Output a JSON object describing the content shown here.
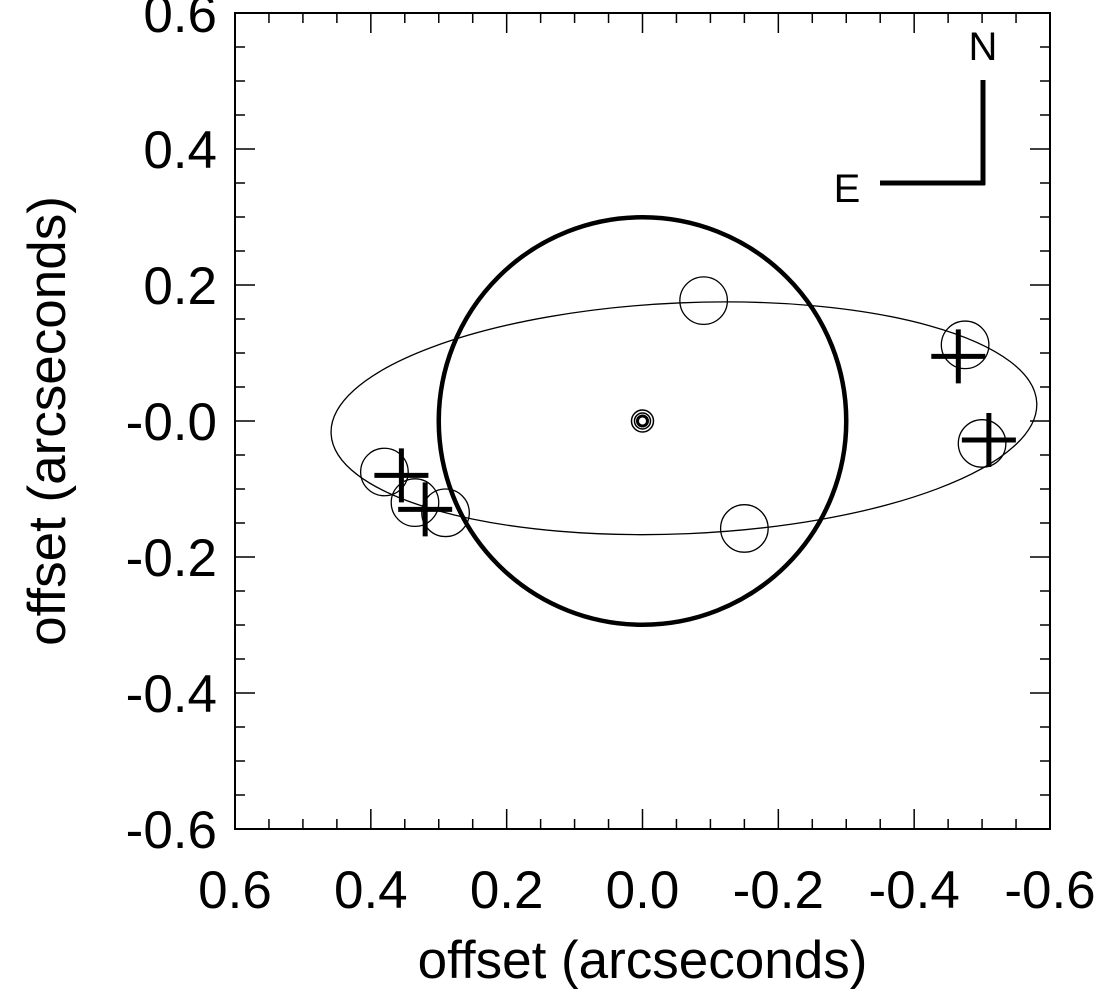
{
  "chart_data": {
    "type": "scatter",
    "xlabel": "offset (arcseconds)",
    "ylabel": "offset (arcseconds)",
    "xlim": [
      0.6,
      -0.6
    ],
    "ylim": [
      -0.6,
      0.6
    ],
    "x_ticks": [
      "0.6",
      "0.4",
      "0.2",
      "0.0",
      "-0.2",
      "-0.4",
      "-0.6"
    ],
    "y_ticks": [
      "0.6",
      "0.4",
      "0.2",
      "-0.0",
      "-0.2",
      "-0.4",
      "-0.6"
    ],
    "x_tick_values": [
      0.6,
      0.4,
      0.2,
      0.0,
      -0.2,
      -0.4,
      -0.6
    ],
    "y_tick_values": [
      0.6,
      0.4,
      0.2,
      0.0,
      -0.2,
      -0.4,
      -0.6
    ],
    "grid": false,
    "central_object": {
      "x": 0.0,
      "y": 0.0
    },
    "large_circle": {
      "cx": 0.0,
      "cy": 0.0,
      "radius": 0.3
    },
    "orbit_ellipse": {
      "cx": -0.061,
      "cy": 0.004,
      "semi_major": 0.52,
      "semi_minor": 0.17,
      "tilt_deg": -2.5
    },
    "predicted_positions": [
      {
        "x": 0.38,
        "y": -0.075
      },
      {
        "x": 0.335,
        "y": -0.12
      },
      {
        "x": 0.29,
        "y": -0.135
      },
      {
        "x": -0.09,
        "y": 0.177
      },
      {
        "x": -0.15,
        "y": -0.158
      },
      {
        "x": -0.475,
        "y": 0.112
      },
      {
        "x": -0.5,
        "y": -0.033
      }
    ],
    "predicted_marker_radius": 0.035,
    "observed_positions": [
      {
        "x": 0.355,
        "y": -0.08
      },
      {
        "x": 0.32,
        "y": -0.13
      },
      {
        "x": -0.465,
        "y": 0.095
      },
      {
        "x": -0.51,
        "y": -0.028
      }
    ],
    "compass": {
      "north": "N",
      "east": "E"
    }
  }
}
